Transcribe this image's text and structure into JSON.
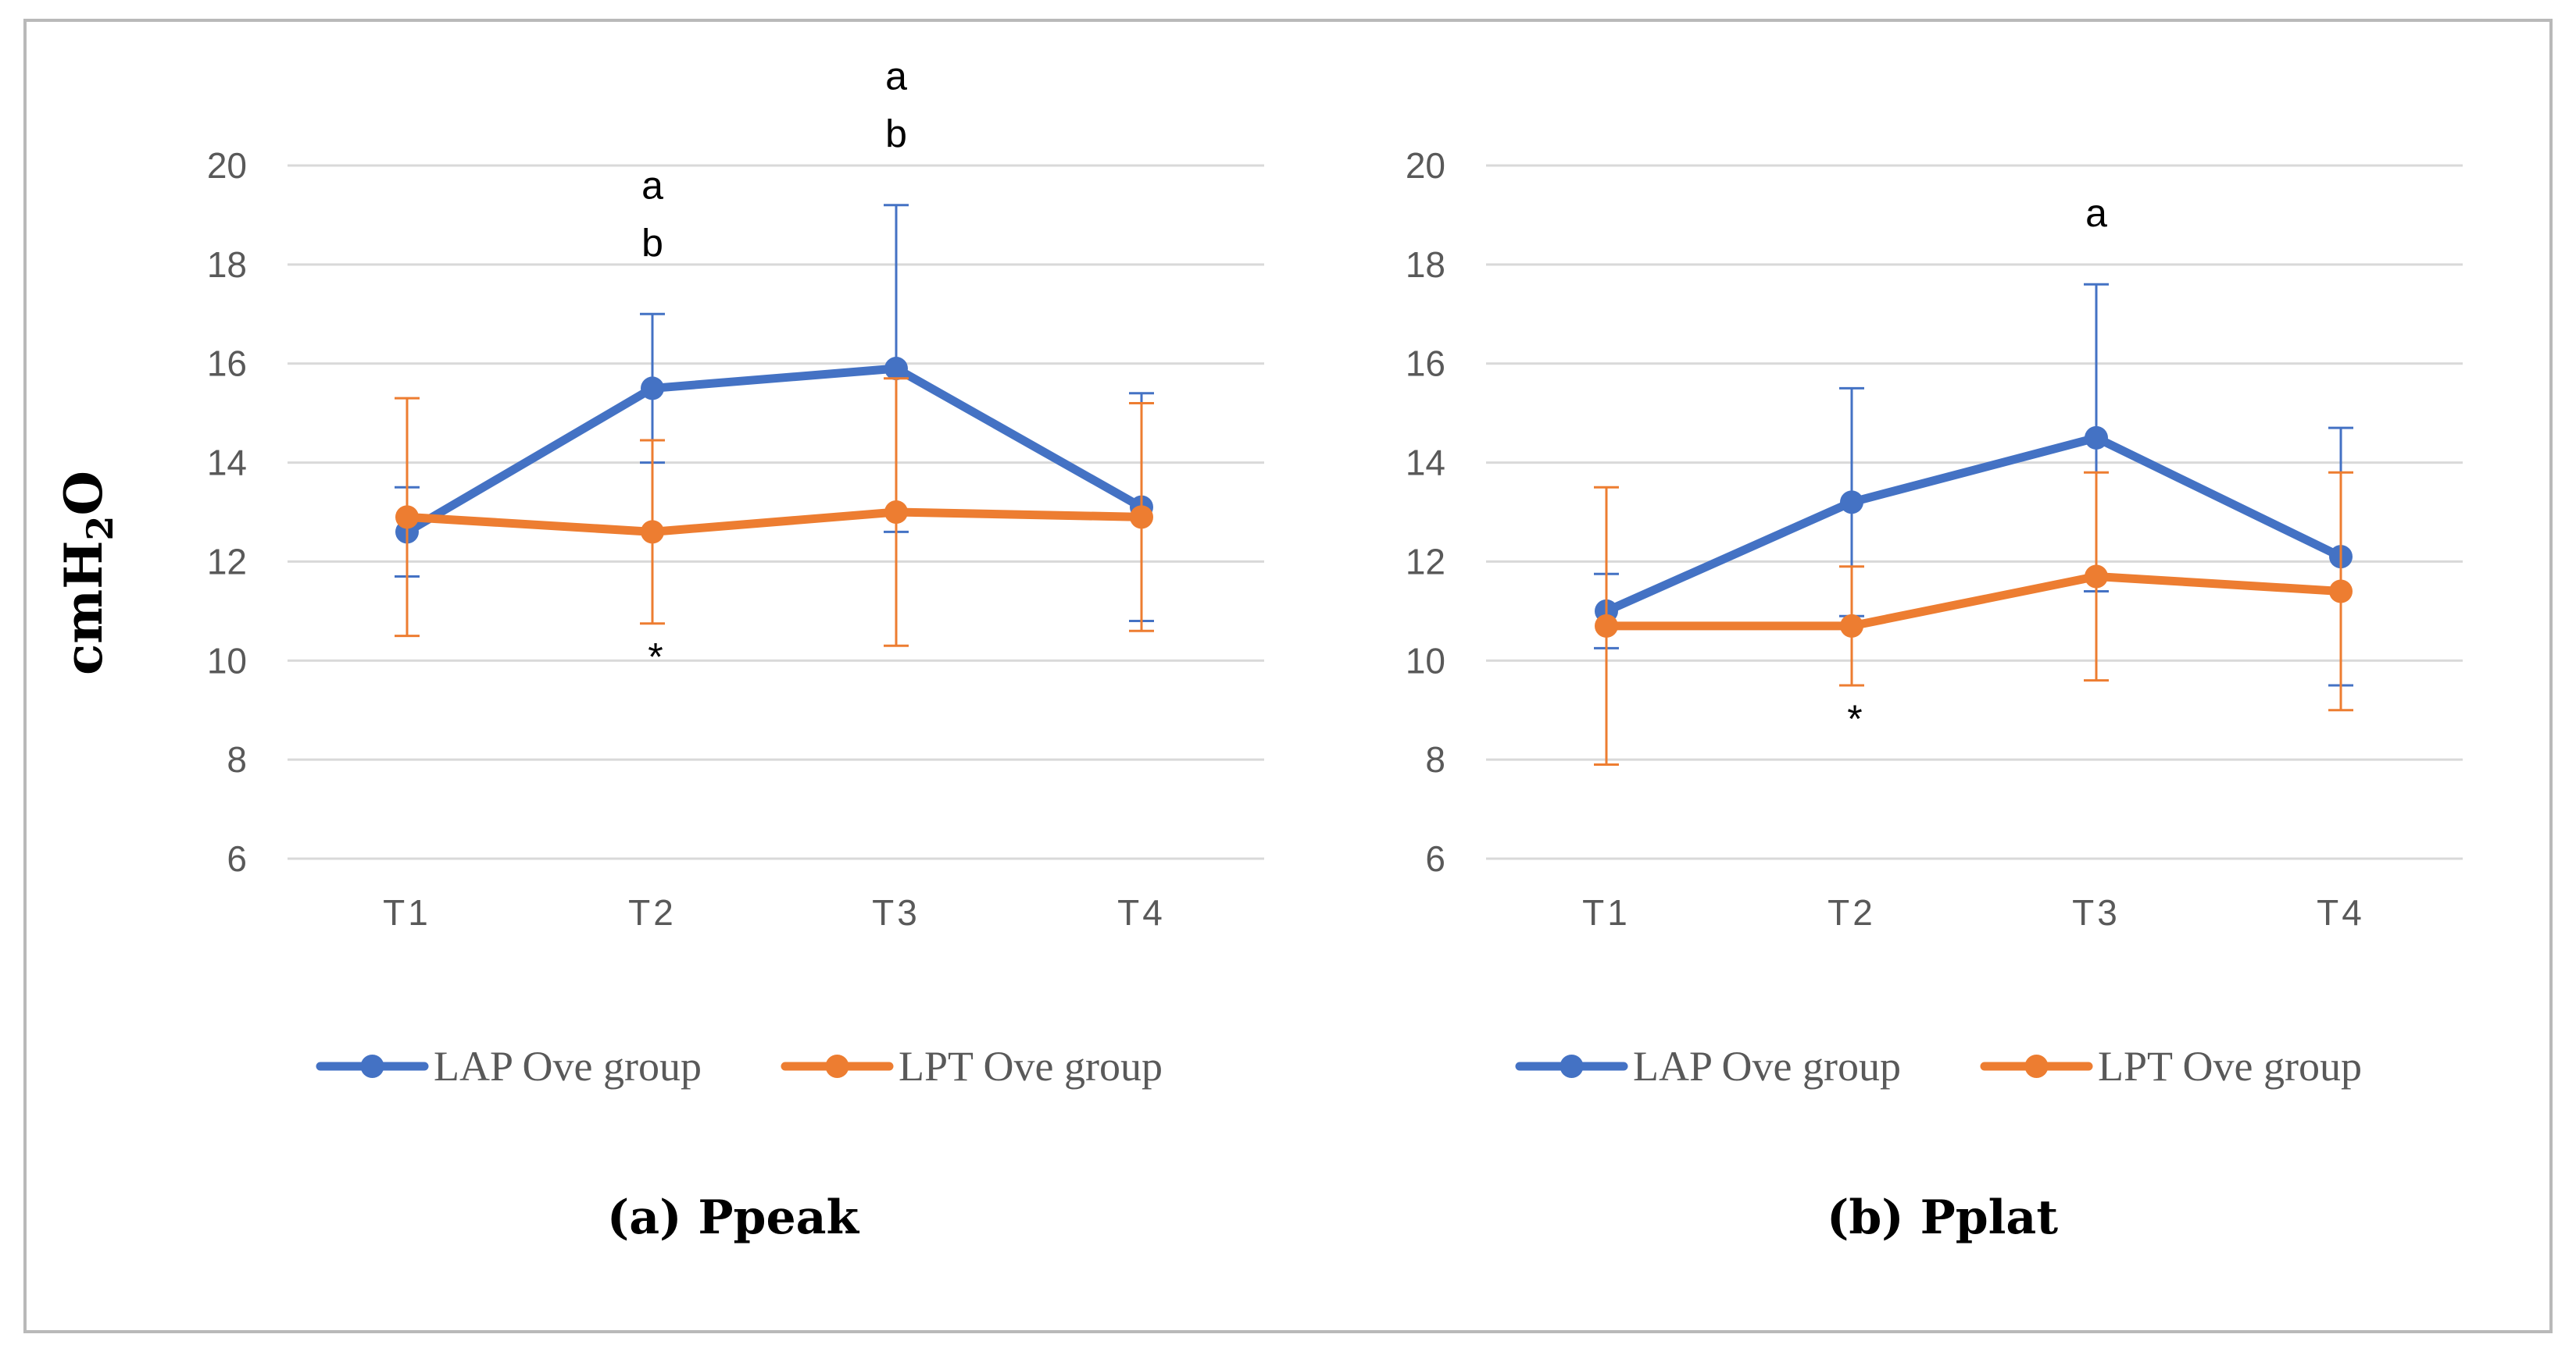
{
  "y_axis_label": {
    "main": "cmH",
    "sub": "2",
    "tail": "O"
  },
  "chart_data": [
    {
      "type": "line",
      "title": "(a) Ppeak",
      "ylabel": "cmH2O",
      "categories": [
        "T1",
        "T2",
        "T3",
        "T4"
      ],
      "ylim": [
        6,
        20
      ],
      "yticks": [
        6,
        8,
        10,
        12,
        14,
        16,
        18,
        20
      ],
      "grid": true,
      "legend_position": "bottom",
      "series": [
        {
          "name": "LAP Ove group",
          "color": "#4472c4",
          "values": [
            12.6,
            15.5,
            15.9,
            13.1
          ],
          "err_low": [
            11.7,
            14.0,
            12.6,
            10.8
          ],
          "err_high": [
            13.5,
            17.0,
            19.2,
            15.4
          ]
        },
        {
          "name": "LPT Ove group",
          "color": "#ed7d31",
          "values": [
            12.9,
            12.6,
            13.0,
            12.9
          ],
          "err_low": [
            10.5,
            10.75,
            10.3,
            10.6
          ],
          "err_high": [
            15.3,
            14.45,
            15.7,
            15.2
          ]
        }
      ],
      "annotations": [
        {
          "category": "T2",
          "lines": [
            "a",
            "b"
          ]
        },
        {
          "category": "T3",
          "lines": [
            "a",
            "b"
          ]
        },
        {
          "category": "T2",
          "lines": [
            "*"
          ],
          "below": true
        }
      ]
    },
    {
      "type": "line",
      "title": "(b) Pplat",
      "ylabel": "cmH2O",
      "categories": [
        "T1",
        "T2",
        "T3",
        "T4"
      ],
      "ylim": [
        6,
        20
      ],
      "yticks": [
        6,
        8,
        10,
        12,
        14,
        16,
        18,
        20
      ],
      "grid": true,
      "legend_position": "bottom",
      "series": [
        {
          "name": "LAP Ove group",
          "color": "#4472c4",
          "values": [
            11.0,
            13.2,
            14.5,
            12.1
          ],
          "err_low": [
            10.25,
            10.9,
            11.4,
            9.5
          ],
          "err_high": [
            11.75,
            15.5,
            17.6,
            14.7
          ]
        },
        {
          "name": "LPT Ove group",
          "color": "#ed7d31",
          "values": [
            10.7,
            10.7,
            11.7,
            11.4
          ],
          "err_low": [
            7.9,
            9.5,
            9.6,
            9.0
          ],
          "err_high": [
            13.5,
            11.9,
            13.8,
            13.8
          ]
        }
      ],
      "annotations": [
        {
          "category": "T3",
          "lines": [
            "a"
          ]
        },
        {
          "category": "T2",
          "lines": [
            "*"
          ],
          "below": true
        }
      ]
    }
  ]
}
